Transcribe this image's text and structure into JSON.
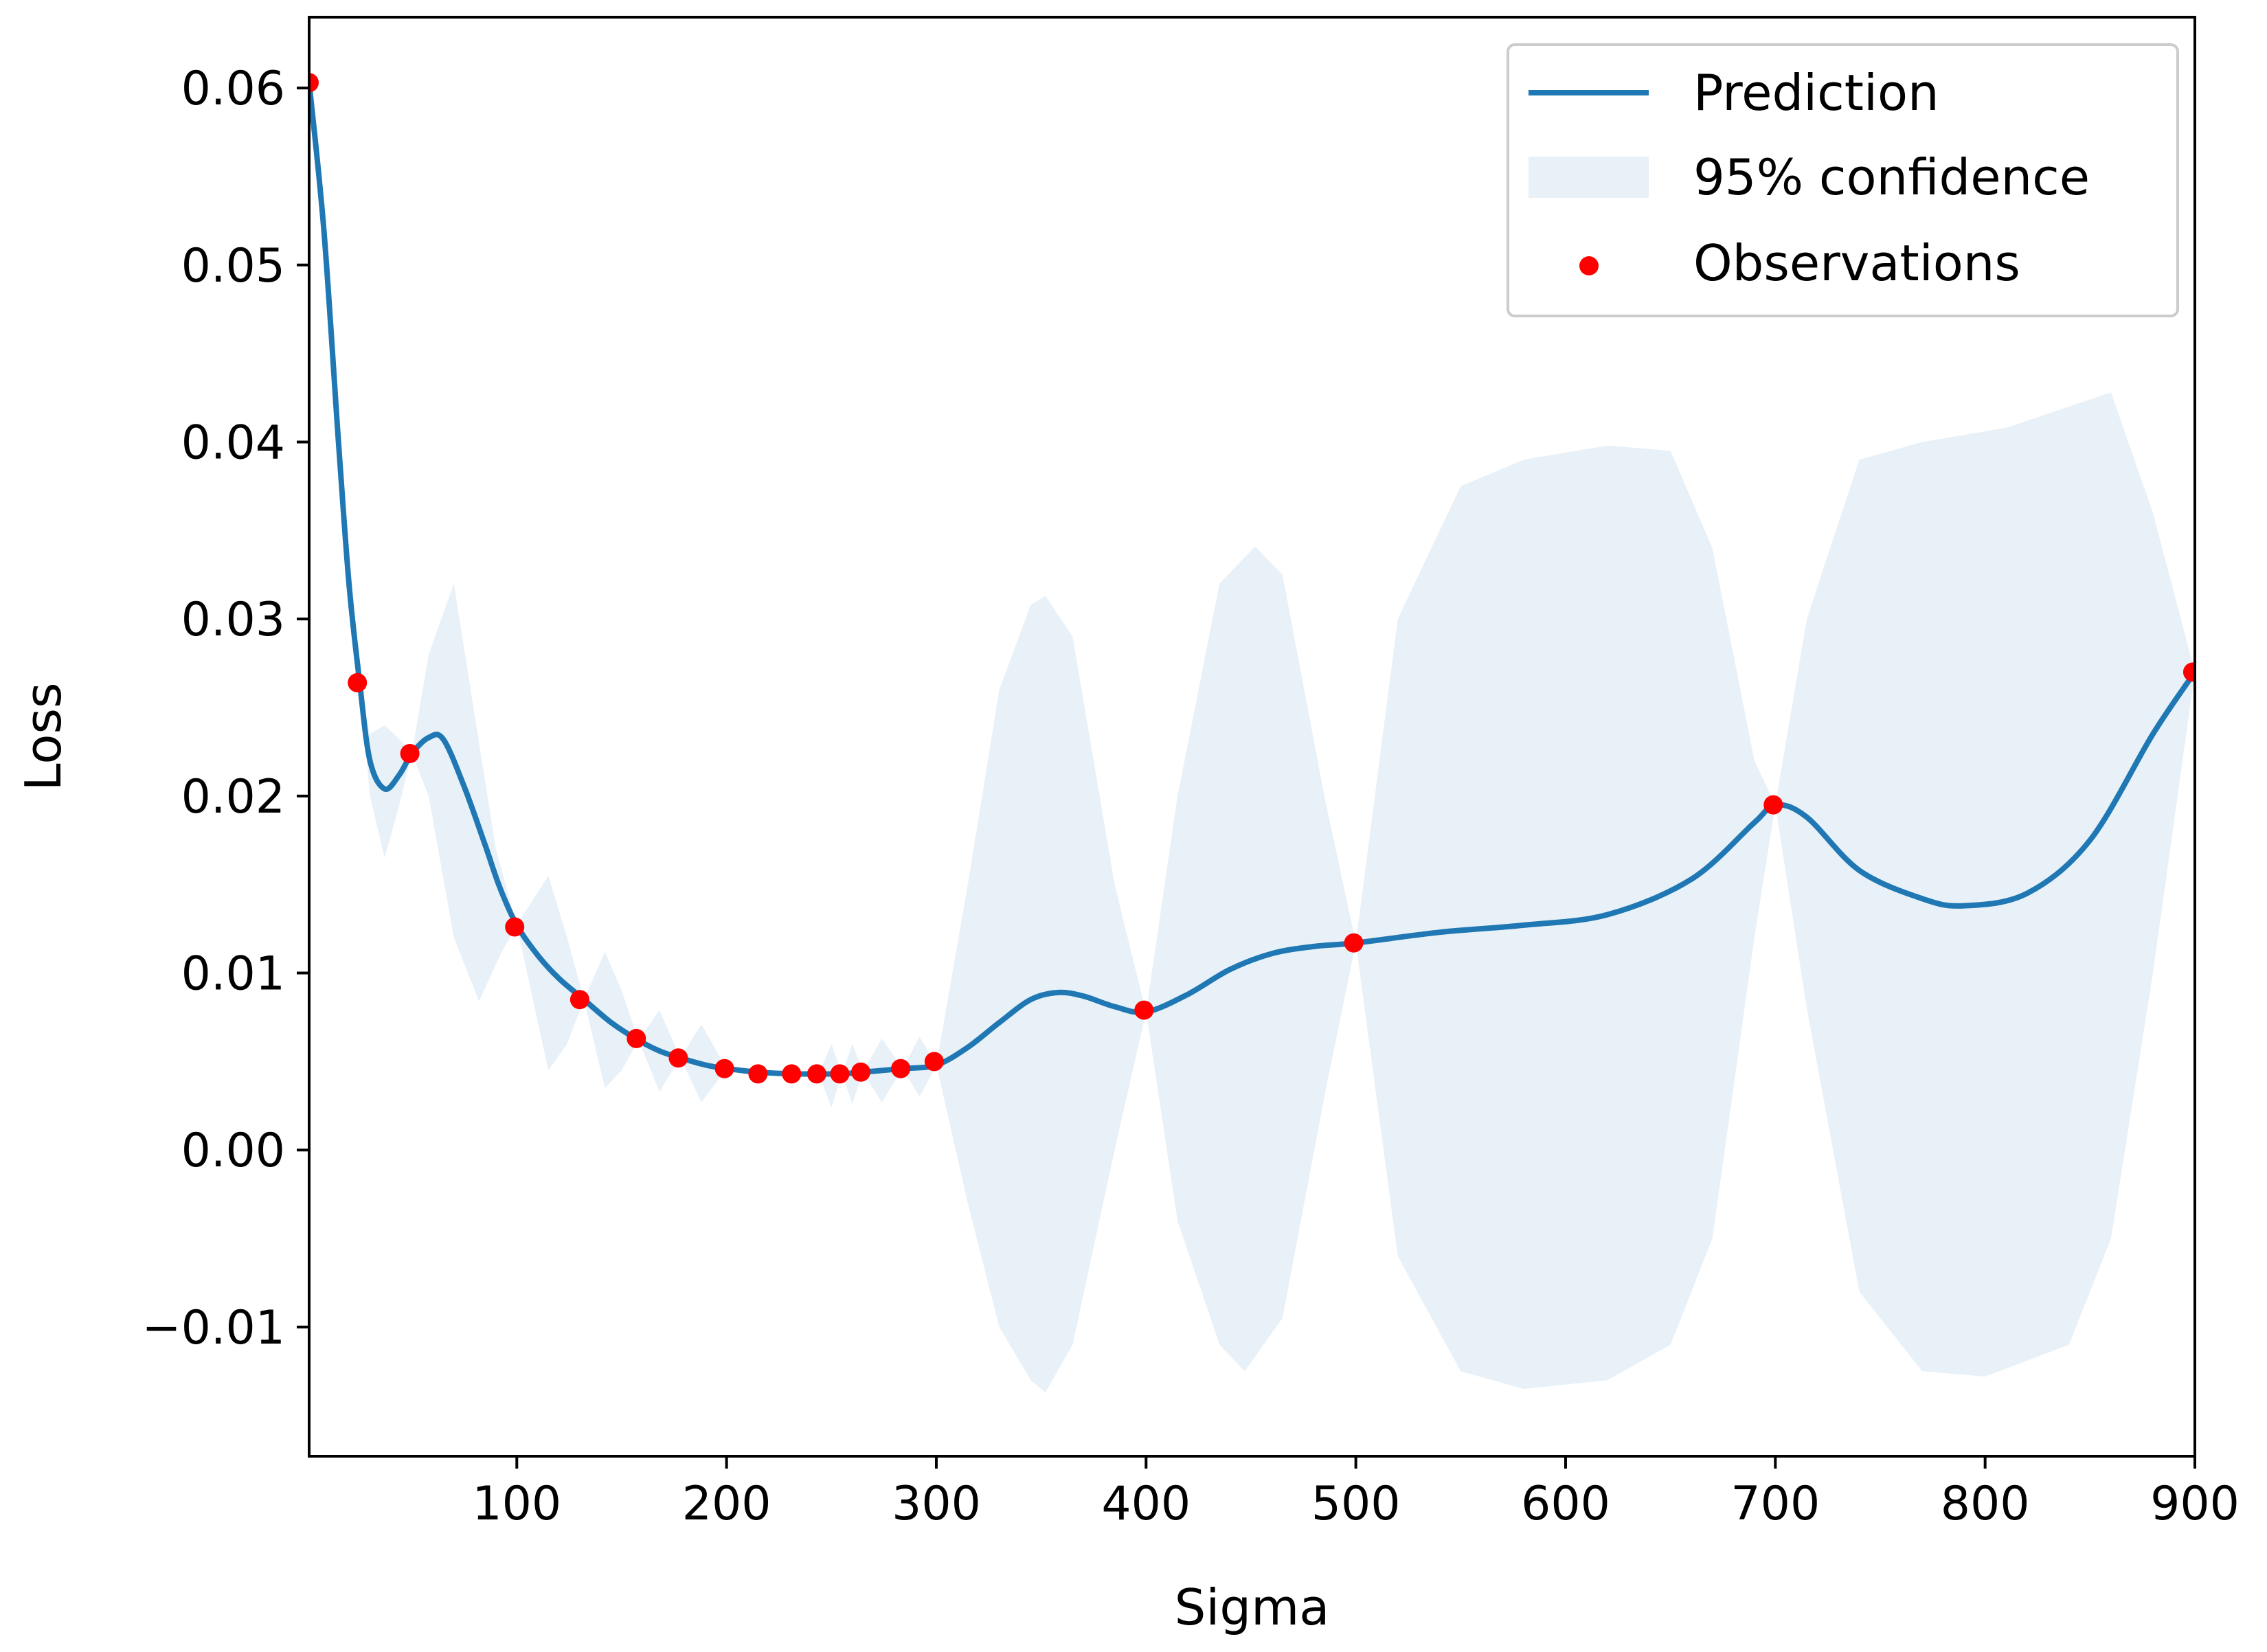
{
  "chart_data": {
    "type": "line",
    "xlabel": "Sigma",
    "ylabel": "Loss",
    "xlim": [
      1,
      900
    ],
    "ylim": [
      -0.0173,
      0.064
    ],
    "x_ticks": [
      100,
      200,
      300,
      400,
      500,
      600,
      700,
      800,
      900
    ],
    "x_tick_labels": [
      "100",
      "200",
      "300",
      "400",
      "500",
      "600",
      "700",
      "800",
      "900"
    ],
    "y_ticks": [
      -0.01,
      0.0,
      0.01,
      0.02,
      0.03,
      0.04,
      0.05,
      0.06
    ],
    "y_tick_labels": [
      "−0.01",
      "0.00",
      "0.01",
      "0.02",
      "0.03",
      "0.04",
      "0.05",
      "0.06"
    ],
    "grid": false,
    "legend": {
      "position": "top-right",
      "entries": [
        "Prediction",
        "95% confidence",
        "Observations"
      ]
    },
    "colors": {
      "prediction": "#1f77b4",
      "confidence": "#1f77b4",
      "observations": "#ff0000"
    },
    "series": [
      {
        "name": "Prediction",
        "kind": "line",
        "points": [
          [
            1,
            0.0603
          ],
          [
            8,
            0.052
          ],
          [
            15,
            0.04
          ],
          [
            20,
            0.032
          ],
          [
            25,
            0.0265
          ],
          [
            30,
            0.022
          ],
          [
            37,
            0.0204
          ],
          [
            44,
            0.0212
          ],
          [
            50,
            0.0224
          ],
          [
            58,
            0.0233
          ],
          [
            65,
            0.0232
          ],
          [
            75,
            0.0205
          ],
          [
            85,
            0.0172
          ],
          [
            92,
            0.0148
          ],
          [
            100,
            0.0127
          ],
          [
            110,
            0.011
          ],
          [
            120,
            0.0097
          ],
          [
            132,
            0.0085
          ],
          [
            145,
            0.0072
          ],
          [
            158,
            0.0062
          ],
          [
            168,
            0.0056
          ],
          [
            178,
            0.0052
          ],
          [
            190,
            0.0048
          ],
          [
            200,
            0.0046
          ],
          [
            215,
            0.0044
          ],
          [
            232,
            0.0043
          ],
          [
            244,
            0.0043
          ],
          [
            255,
            0.0043
          ],
          [
            265,
            0.0044
          ],
          [
            284,
            0.0046
          ],
          [
            300,
            0.0048
          ],
          [
            315,
            0.0058
          ],
          [
            330,
            0.0072
          ],
          [
            345,
            0.0085
          ],
          [
            358,
            0.0089
          ],
          [
            370,
            0.0087
          ],
          [
            385,
            0.0081
          ],
          [
            400,
            0.0078
          ],
          [
            420,
            0.0088
          ],
          [
            440,
            0.0102
          ],
          [
            460,
            0.0111
          ],
          [
            480,
            0.0115
          ],
          [
            500,
            0.0117
          ],
          [
            540,
            0.0123
          ],
          [
            580,
            0.0127
          ],
          [
            620,
            0.0133
          ],
          [
            660,
            0.0153
          ],
          [
            690,
            0.0185
          ],
          [
            700,
            0.0195
          ],
          [
            715,
            0.0188
          ],
          [
            740,
            0.0158
          ],
          [
            770,
            0.0142
          ],
          [
            790,
            0.0138
          ],
          [
            820,
            0.0145
          ],
          [
            850,
            0.0175
          ],
          [
            880,
            0.0235
          ],
          [
            900,
            0.027
          ]
        ]
      },
      {
        "name": "95% confidence",
        "kind": "band",
        "upper": [
          [
            1,
            0.0603
          ],
          [
            8,
            0.052
          ],
          [
            15,
            0.04
          ],
          [
            20,
            0.032
          ],
          [
            25,
            0.0265
          ],
          [
            30,
            0.0235
          ],
          [
            37,
            0.024
          ],
          [
            44,
            0.0232
          ],
          [
            50,
            0.0224
          ],
          [
            58,
            0.028
          ],
          [
            70,
            0.032
          ],
          [
            78,
            0.026
          ],
          [
            90,
            0.017
          ],
          [
            100,
            0.0127
          ],
          [
            115,
            0.0155
          ],
          [
            124,
            0.012
          ],
          [
            132,
            0.0085
          ],
          [
            142,
            0.0112
          ],
          [
            150,
            0.009
          ],
          [
            158,
            0.0062
          ],
          [
            168,
            0.0079
          ],
          [
            178,
            0.0052
          ],
          [
            188,
            0.0071
          ],
          [
            200,
            0.0046
          ],
          [
            215,
            0.0044
          ],
          [
            232,
            0.0043
          ],
          [
            244,
            0.0043
          ],
          [
            250,
            0.006
          ],
          [
            255,
            0.0043
          ],
          [
            260,
            0.006
          ],
          [
            265,
            0.0044
          ],
          [
            274,
            0.0063
          ],
          [
            284,
            0.0046
          ],
          [
            292,
            0.0064
          ],
          [
            300,
            0.0048
          ],
          [
            315,
            0.015
          ],
          [
            330,
            0.026
          ],
          [
            345,
            0.0308
          ],
          [
            352,
            0.0313
          ],
          [
            365,
            0.029
          ],
          [
            385,
            0.015
          ],
          [
            400,
            0.0078
          ],
          [
            415,
            0.02
          ],
          [
            435,
            0.032
          ],
          [
            452,
            0.0341
          ],
          [
            465,
            0.0325
          ],
          [
            485,
            0.02
          ],
          [
            500,
            0.0117
          ],
          [
            520,
            0.03
          ],
          [
            550,
            0.0375
          ],
          [
            580,
            0.039
          ],
          [
            620,
            0.0398
          ],
          [
            650,
            0.0395
          ],
          [
            670,
            0.034
          ],
          [
            690,
            0.022
          ],
          [
            700,
            0.0195
          ],
          [
            715,
            0.03
          ],
          [
            740,
            0.039
          ],
          [
            770,
            0.04
          ],
          [
            810,
            0.0408
          ],
          [
            840,
            0.042
          ],
          [
            860,
            0.0428
          ],
          [
            880,
            0.036
          ],
          [
            900,
            0.027
          ]
        ],
        "lower": [
          [
            1,
            0.0603
          ],
          [
            8,
            0.052
          ],
          [
            15,
            0.04
          ],
          [
            20,
            0.032
          ],
          [
            25,
            0.0265
          ],
          [
            30,
            0.02
          ],
          [
            37,
            0.0165
          ],
          [
            44,
            0.0195
          ],
          [
            50,
            0.0224
          ],
          [
            58,
            0.02
          ],
          [
            70,
            0.012
          ],
          [
            82,
            0.0084
          ],
          [
            92,
            0.011
          ],
          [
            100,
            0.0127
          ],
          [
            115,
            0.0045
          ],
          [
            124,
            0.006
          ],
          [
            132,
            0.0085
          ],
          [
            142,
            0.0035
          ],
          [
            150,
            0.0045
          ],
          [
            158,
            0.0062
          ],
          [
            168,
            0.0033
          ],
          [
            178,
            0.0052
          ],
          [
            188,
            0.0027
          ],
          [
            200,
            0.0046
          ],
          [
            215,
            0.0044
          ],
          [
            232,
            0.0043
          ],
          [
            244,
            0.0043
          ],
          [
            250,
            0.0024
          ],
          [
            255,
            0.0043
          ],
          [
            260,
            0.0026
          ],
          [
            265,
            0.0044
          ],
          [
            274,
            0.0027
          ],
          [
            284,
            0.0046
          ],
          [
            292,
            0.003
          ],
          [
            300,
            0.0048
          ],
          [
            315,
            -0.003
          ],
          [
            330,
            -0.01
          ],
          [
            345,
            -0.013
          ],
          [
            352,
            -0.0137
          ],
          [
            365,
            -0.011
          ],
          [
            385,
            0.0
          ],
          [
            400,
            0.0078
          ],
          [
            415,
            -0.004
          ],
          [
            435,
            -0.011
          ],
          [
            447,
            -0.0125
          ],
          [
            465,
            -0.0095
          ],
          [
            485,
            0.003
          ],
          [
            500,
            0.0117
          ],
          [
            520,
            -0.006
          ],
          [
            550,
            -0.0125
          ],
          [
            580,
            -0.0135
          ],
          [
            620,
            -0.013
          ],
          [
            650,
            -0.011
          ],
          [
            670,
            -0.005
          ],
          [
            690,
            0.012
          ],
          [
            700,
            0.0195
          ],
          [
            715,
            0.008
          ],
          [
            740,
            -0.008
          ],
          [
            770,
            -0.0125
          ],
          [
            800,
            -0.0128
          ],
          [
            840,
            -0.011
          ],
          [
            860,
            -0.005
          ],
          [
            880,
            0.01
          ],
          [
            900,
            0.027
          ]
        ]
      },
      {
        "name": "Observations",
        "kind": "scatter",
        "points": [
          [
            1,
            0.0603
          ],
          [
            24,
            0.0264
          ],
          [
            49,
            0.0224
          ],
          [
            99,
            0.0126
          ],
          [
            130,
            0.0085
          ],
          [
            157,
            0.0063
          ],
          [
            177,
            0.0052
          ],
          [
            199,
            0.0046
          ],
          [
            215,
            0.0043
          ],
          [
            231,
            0.0043
          ],
          [
            243,
            0.0043
          ],
          [
            254,
            0.0043
          ],
          [
            264,
            0.0044
          ],
          [
            283,
            0.0046
          ],
          [
            299,
            0.005
          ],
          [
            399,
            0.0079
          ],
          [
            499,
            0.0117
          ],
          [
            699,
            0.0195
          ],
          [
            899,
            0.027
          ]
        ]
      }
    ]
  }
}
